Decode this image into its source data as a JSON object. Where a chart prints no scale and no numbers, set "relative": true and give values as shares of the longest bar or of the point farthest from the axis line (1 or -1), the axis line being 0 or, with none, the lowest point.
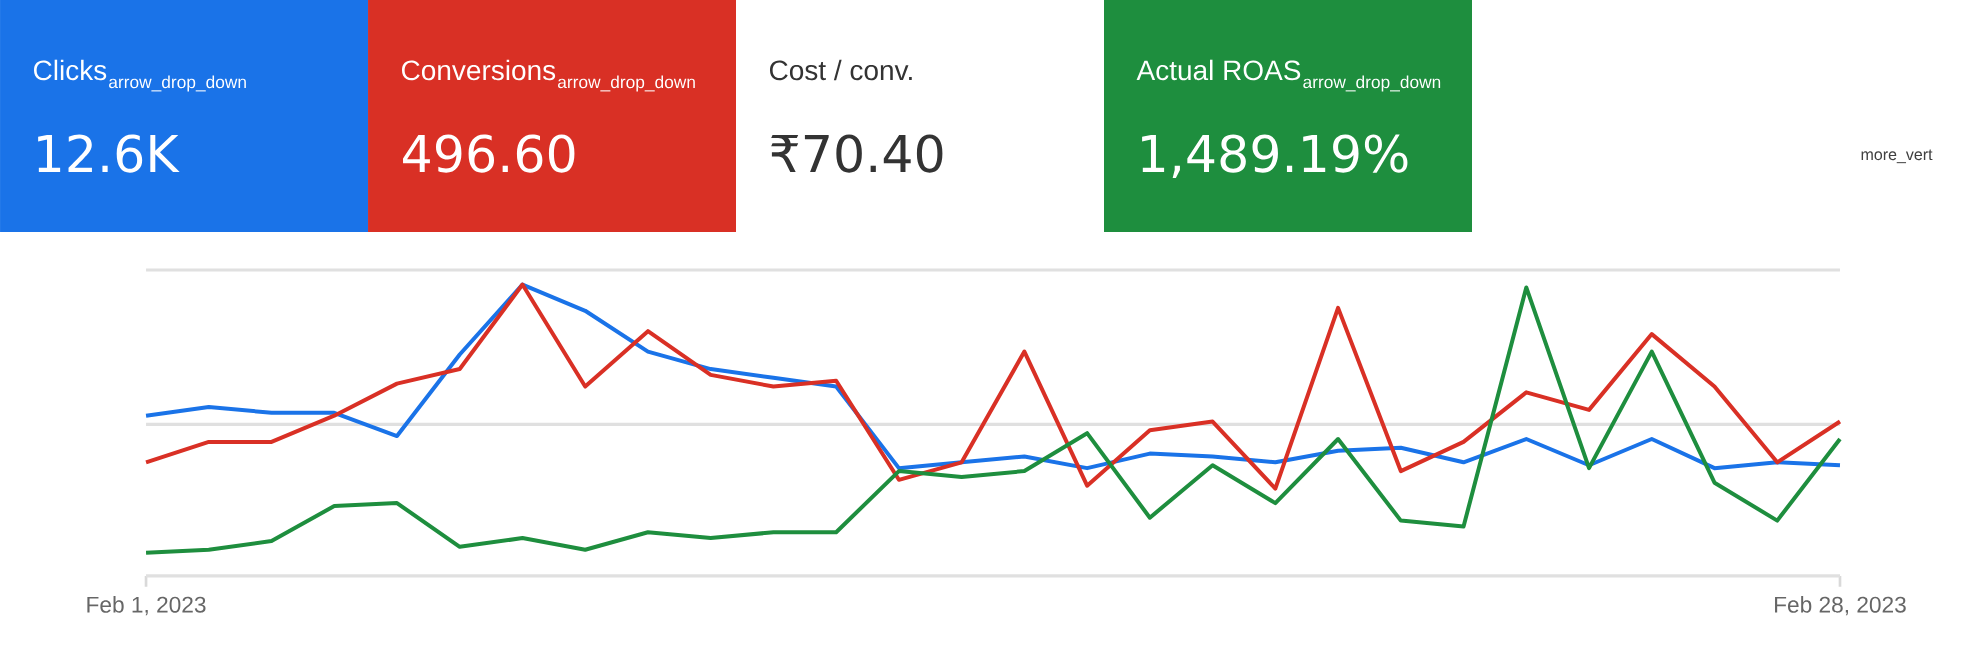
{
  "chart_data": [
    {
      "type": "other",
      "categories": [
        "Clicks",
        "Conversions",
        "Cost / conv.",
        "Actual ROAS"
      ],
      "value_labels": [
        "12.6K",
        "496.60",
        "₹70.40",
        "1,489.19%"
      ],
      "colors": [
        "#1a73e8",
        "#d93025",
        "#ffffff",
        "#1e8e3e"
      ],
      "annotations": [
        "arrow_drop_down",
        "arrow_drop_down",
        "arrow_drop_down",
        "more_vert"
      ]
    },
    {
      "type": "line",
      "relative": true,
      "ref_lines": [
        {
          "axis": "y",
          "value": 0.52,
          "color": "#e0e0e0"
        },
        {
          "axis": "y",
          "value": 1.05,
          "color": "#e0e0e0"
        }
      ],
      "x": [
        "2023-02-01",
        "2023-02-02",
        "2023-02-03",
        "2023-02-04",
        "2023-02-05",
        "2023-02-06",
        "2023-02-07",
        "2023-02-08",
        "2023-02-09",
        "2023-02-10",
        "2023-02-11",
        "2023-02-12",
        "2023-02-13",
        "2023-02-14",
        "2023-02-15",
        "2023-02-16",
        "2023-02-17",
        "2023-02-18",
        "2023-02-19",
        "2023-02-20",
        "2023-02-21",
        "2023-02-22",
        "2023-02-23",
        "2023-02-24",
        "2023-02-25",
        "2023-02-26",
        "2023-02-27",
        "2023-02-28"
      ],
      "xlim": [
        "2023-02-01",
        "2023-02-28"
      ],
      "xticks": [
        {
          "value": "2023-02-01",
          "label": "Feb 1, 2023"
        },
        {
          "value": "2023-02-28",
          "label": "Feb 28, 2023"
        }
      ],
      "series": [
        {
          "color": "#1a73e8",
          "values": [
            0.55,
            0.58,
            0.56,
            0.56,
            0.48,
            0.76,
            1.0,
            0.91,
            0.77,
            0.71,
            0.68,
            0.65,
            0.37,
            0.39,
            0.41,
            0.37,
            0.42,
            0.41,
            0.39,
            0.43,
            0.44,
            0.39,
            0.47,
            0.38,
            0.47,
            0.37,
            0.39,
            0.38
          ]
        },
        {
          "color": "#d93025",
          "values": [
            0.39,
            0.46,
            0.46,
            0.55,
            0.66,
            0.71,
            1.0,
            0.65,
            0.84,
            0.69,
            0.65,
            0.67,
            0.33,
            0.39,
            0.77,
            0.31,
            0.5,
            0.53,
            0.3,
            0.92,
            0.36,
            0.46,
            0.63,
            0.57,
            0.83,
            0.65,
            0.39,
            0.53
          ]
        },
        {
          "color": "#1e8e3e",
          "values": [
            0.08,
            0.09,
            0.12,
            0.24,
            0.25,
            0.1,
            0.13,
            0.09,
            0.15,
            0.13,
            0.15,
            0.15,
            0.36,
            0.34,
            0.36,
            0.49,
            0.2,
            0.38,
            0.25,
            0.47,
            0.19,
            0.17,
            0.99,
            0.37,
            0.77,
            0.32,
            0.19,
            0.47
          ]
        }
      ]
    }
  ]
}
